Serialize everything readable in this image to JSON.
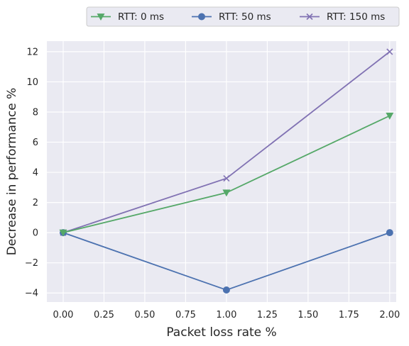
{
  "chart_data": {
    "type": "line",
    "title": "",
    "xlabel": "Packet loss rate %",
    "ylabel": "Decrease in performance %",
    "x": [
      0.0,
      1.0,
      2.0
    ],
    "xlim": [
      -0.1,
      2.04
    ],
    "ylim": [
      -4.6,
      12.7
    ],
    "xticks": [
      0.0,
      0.25,
      0.5,
      0.75,
      1.0,
      1.25,
      1.5,
      1.75,
      2.0
    ],
    "xtick_labels": [
      "0.00",
      "0.25",
      "0.50",
      "0.75",
      "1.00",
      "1.25",
      "1.50",
      "1.75",
      "2.00"
    ],
    "yticks": [
      -4,
      -2,
      0,
      2,
      4,
      6,
      8,
      10,
      12
    ],
    "ytick_labels": [
      "−4",
      "−2",
      "0",
      "2",
      "4",
      "6",
      "8",
      "10",
      "12"
    ],
    "grid": true,
    "legend_position": "top-right, above plot",
    "background": "#eaeaf2",
    "series": [
      {
        "name": "RTT: 0 ms",
        "values": [
          0.0,
          2.65,
          7.75
        ],
        "color": "#55a868",
        "marker": "triangle-down"
      },
      {
        "name": "RTT: 50 ms",
        "values": [
          0.0,
          -3.8,
          0.0
        ],
        "color": "#4c72b0",
        "marker": "circle"
      },
      {
        "name": "RTT: 150 ms",
        "values": [
          0.0,
          3.6,
          12.0
        ],
        "color": "#8172b3",
        "marker": "x"
      }
    ]
  }
}
